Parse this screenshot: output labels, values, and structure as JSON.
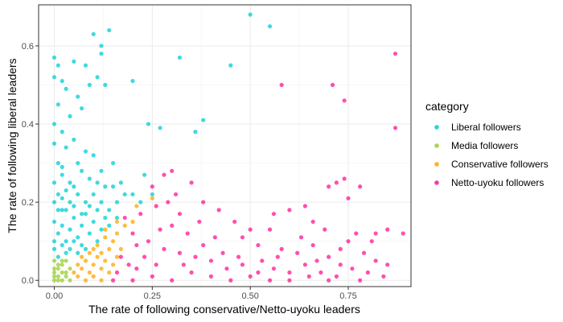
{
  "chart_data": {
    "type": "scatter",
    "title": "",
    "xlabel": "The rate of following conservative/Netto-uyoku leaders",
    "ylabel": "The rate of following liberal leaders",
    "xlim": [
      -0.04,
      0.91
    ],
    "ylim": [
      -0.016,
      0.705
    ],
    "x_ticks": [
      0.0,
      0.25,
      0.5,
      0.75
    ],
    "x_tick_labels": [
      "0.00",
      "0.25",
      "0.50",
      "0.75"
    ],
    "y_ticks": [
      0.0,
      0.2,
      0.4,
      0.6
    ],
    "y_tick_labels": [
      "0.0",
      "0.2",
      "0.4",
      "0.6"
    ],
    "grid": true,
    "legend": {
      "title": "category",
      "placement": "right",
      "entries": [
        "Liberal followers",
        "Media followers",
        "Conservative followers",
        "Netto-uyoku followers"
      ]
    },
    "series": [
      {
        "name": "Liberal followers",
        "color": "#00CED1",
        "points": [
          [
            0.0,
            0.57
          ],
          [
            0.01,
            0.55
          ],
          [
            0.0,
            0.52
          ],
          [
            0.02,
            0.51
          ],
          [
            0.05,
            0.56
          ],
          [
            0.1,
            0.63
          ],
          [
            0.12,
            0.6
          ],
          [
            0.14,
            0.64
          ],
          [
            0.12,
            0.58
          ],
          [
            0.08,
            0.55
          ],
          [
            0.11,
            0.52
          ],
          [
            0.13,
            0.5
          ],
          [
            0.2,
            0.51
          ],
          [
            0.5,
            0.68
          ],
          [
            0.55,
            0.65
          ],
          [
            0.32,
            0.57
          ],
          [
            0.45,
            0.55
          ],
          [
            0.38,
            0.41
          ],
          [
            0.36,
            0.38
          ],
          [
            0.27,
            0.39
          ],
          [
            0.24,
            0.4
          ],
          [
            0.03,
            0.49
          ],
          [
            0.06,
            0.47
          ],
          [
            0.09,
            0.5
          ],
          [
            0.07,
            0.44
          ],
          [
            0.04,
            0.42
          ],
          [
            0.01,
            0.45
          ],
          [
            0.02,
            0.38
          ],
          [
            0.05,
            0.36
          ],
          [
            0.08,
            0.33
          ],
          [
            0.0,
            0.4
          ],
          [
            0.03,
            0.34
          ],
          [
            0.06,
            0.3
          ],
          [
            0.1,
            0.32
          ],
          [
            0.12,
            0.28
          ],
          [
            0.15,
            0.3
          ],
          [
            0.17,
            0.25
          ],
          [
            0.2,
            0.22
          ],
          [
            0.23,
            0.27
          ],
          [
            0.25,
            0.22
          ],
          [
            0.22,
            0.2
          ],
          [
            0.0,
            0.35
          ],
          [
            0.01,
            0.3
          ],
          [
            0.02,
            0.27
          ],
          [
            0.04,
            0.25
          ],
          [
            0.0,
            0.25
          ],
          [
            0.01,
            0.22
          ],
          [
            0.0,
            0.2
          ],
          [
            0.02,
            0.18
          ],
          [
            0.04,
            0.2
          ],
          [
            0.06,
            0.22
          ],
          [
            0.08,
            0.2
          ],
          [
            0.1,
            0.22
          ],
          [
            0.12,
            0.2
          ],
          [
            0.14,
            0.18
          ],
          [
            0.16,
            0.2
          ],
          [
            0.18,
            0.22
          ],
          [
            0.15,
            0.24
          ],
          [
            0.09,
            0.26
          ],
          [
            0.07,
            0.28
          ],
          [
            0.11,
            0.25
          ],
          [
            0.13,
            0.24
          ],
          [
            0.0,
            0.15
          ],
          [
            0.01,
            0.12
          ],
          [
            0.02,
            0.14
          ],
          [
            0.03,
            0.1
          ],
          [
            0.04,
            0.13
          ],
          [
            0.05,
            0.16
          ],
          [
            0.06,
            0.11
          ],
          [
            0.07,
            0.14
          ],
          [
            0.08,
            0.17
          ],
          [
            0.09,
            0.12
          ],
          [
            0.1,
            0.15
          ],
          [
            0.11,
            0.18
          ],
          [
            0.12,
            0.13
          ],
          [
            0.13,
            0.16
          ],
          [
            0.03,
            0.18
          ],
          [
            0.05,
            0.19
          ],
          [
            0.07,
            0.17
          ],
          [
            0.09,
            0.19
          ],
          [
            0.0,
            0.08
          ],
          [
            0.01,
            0.06
          ],
          [
            0.02,
            0.09
          ],
          [
            0.03,
            0.07
          ],
          [
            0.04,
            0.08
          ],
          [
            0.05,
            0.1
          ],
          [
            0.06,
            0.07
          ],
          [
            0.07,
            0.09
          ],
          [
            0.02,
            0.21
          ],
          [
            0.0,
            0.1
          ],
          [
            0.01,
            0.18
          ],
          [
            0.03,
            0.23
          ],
          [
            0.05,
            0.24
          ],
          [
            0.11,
            0.1
          ],
          [
            0.08,
            0.08
          ],
          [
            0.14,
            0.14
          ],
          [
            0.16,
            0.16
          ],
          [
            0.02,
            0.29
          ]
        ]
      },
      {
        "name": "Media followers",
        "color": "#9ACD32",
        "points": [
          [
            0.0,
            0.05
          ],
          [
            0.01,
            0.03
          ],
          [
            0.0,
            0.02
          ],
          [
            0.02,
            0.04
          ],
          [
            0.01,
            0.01
          ],
          [
            0.03,
            0.02
          ],
          [
            0.02,
            0.0
          ],
          [
            0.0,
            0.0
          ],
          [
            0.04,
            0.03
          ],
          [
            0.03,
            0.05
          ],
          [
            0.01,
            0.04
          ],
          [
            0.02,
            0.02
          ],
          [
            0.0,
            0.03
          ],
          [
            0.03,
            0.01
          ],
          [
            0.04,
            0.0
          ],
          [
            0.01,
            0.0
          ],
          [
            0.02,
            0.05
          ],
          [
            0.0,
            0.01
          ]
        ]
      },
      {
        "name": "Conservative followers",
        "color": "#FFA500",
        "points": [
          [
            0.05,
            0.02
          ],
          [
            0.06,
            0.04
          ],
          [
            0.07,
            0.03
          ],
          [
            0.08,
            0.05
          ],
          [
            0.09,
            0.02
          ],
          [
            0.1,
            0.04
          ],
          [
            0.11,
            0.06
          ],
          [
            0.12,
            0.03
          ],
          [
            0.13,
            0.05
          ],
          [
            0.14,
            0.08
          ],
          [
            0.15,
            0.1
          ],
          [
            0.16,
            0.12
          ],
          [
            0.18,
            0.14
          ],
          [
            0.2,
            0.15
          ],
          [
            0.21,
            0.19
          ],
          [
            0.25,
            0.21
          ],
          [
            0.08,
            0.0
          ],
          [
            0.1,
            0.01
          ],
          [
            0.12,
            0.0
          ],
          [
            0.09,
            0.07
          ],
          [
            0.11,
            0.09
          ],
          [
            0.13,
            0.11
          ],
          [
            0.07,
            0.06
          ],
          [
            0.06,
            0.01
          ],
          [
            0.14,
            0.02
          ],
          [
            0.15,
            0.04
          ],
          [
            0.16,
            0.06
          ],
          [
            0.17,
            0.08
          ],
          [
            0.12,
            0.07
          ],
          [
            0.1,
            0.08
          ],
          [
            0.13,
            0.13
          ],
          [
            0.16,
            0.15
          ]
        ]
      },
      {
        "name": "Netto-uyoku followers",
        "color": "#FF1493",
        "points": [
          [
            0.87,
            0.58
          ],
          [
            0.58,
            0.5
          ],
          [
            0.71,
            0.5
          ],
          [
            0.74,
            0.46
          ],
          [
            0.87,
            0.39
          ],
          [
            0.85,
            0.13
          ],
          [
            0.82,
            0.12
          ],
          [
            0.89,
            0.12
          ],
          [
            0.72,
            0.25
          ],
          [
            0.74,
            0.26
          ],
          [
            0.7,
            0.24
          ],
          [
            0.75,
            0.21
          ],
          [
            0.78,
            0.24
          ],
          [
            0.6,
            0.18
          ],
          [
            0.64,
            0.19
          ],
          [
            0.56,
            0.17
          ],
          [
            0.66,
            0.15
          ],
          [
            0.69,
            0.13
          ],
          [
            0.55,
            0.13
          ],
          [
            0.48,
            0.11
          ],
          [
            0.52,
            0.09
          ],
          [
            0.58,
            0.08
          ],
          [
            0.62,
            0.07
          ],
          [
            0.66,
            0.09
          ],
          [
            0.7,
            0.06
          ],
          [
            0.75,
            0.1
          ],
          [
            0.79,
            0.07
          ],
          [
            0.82,
            0.05
          ],
          [
            0.85,
            0.04
          ],
          [
            0.8,
            0.02
          ],
          [
            0.76,
            0.03
          ],
          [
            0.72,
            0.01
          ],
          [
            0.68,
            0.02
          ],
          [
            0.64,
            0.04
          ],
          [
            0.6,
            0.02
          ],
          [
            0.56,
            0.03
          ],
          [
            0.52,
            0.02
          ],
          [
            0.48,
            0.04
          ],
          [
            0.44,
            0.03
          ],
          [
            0.4,
            0.05
          ],
          [
            0.36,
            0.06
          ],
          [
            0.32,
            0.07
          ],
          [
            0.28,
            0.08
          ],
          [
            0.24,
            0.1
          ],
          [
            0.2,
            0.12
          ],
          [
            0.18,
            0.16
          ],
          [
            0.22,
            0.17
          ],
          [
            0.26,
            0.19
          ],
          [
            0.28,
            0.27
          ],
          [
            0.3,
            0.28
          ],
          [
            0.31,
            0.22
          ],
          [
            0.35,
            0.25
          ],
          [
            0.38,
            0.2
          ],
          [
            0.42,
            0.18
          ],
          [
            0.46,
            0.15
          ],
          [
            0.5,
            0.13
          ],
          [
            0.34,
            0.12
          ],
          [
            0.3,
            0.14
          ],
          [
            0.27,
            0.13
          ],
          [
            0.23,
            0.06
          ],
          [
            0.19,
            0.04
          ],
          [
            0.16,
            0.02
          ],
          [
            0.15,
            0.0
          ],
          [
            0.2,
            0.0
          ],
          [
            0.25,
            0.01
          ],
          [
            0.3,
            0.0
          ],
          [
            0.35,
            0.02
          ],
          [
            0.4,
            0.01
          ],
          [
            0.45,
            0.0
          ],
          [
            0.5,
            0.01
          ],
          [
            0.55,
            0.0
          ],
          [
            0.6,
            0.0
          ],
          [
            0.65,
            0.01
          ],
          [
            0.7,
            0.0
          ],
          [
            0.78,
            0.0
          ],
          [
            0.21,
            0.03
          ],
          [
            0.26,
            0.04
          ],
          [
            0.33,
            0.04
          ],
          [
            0.38,
            0.09
          ],
          [
            0.43,
            0.07
          ],
          [
            0.47,
            0.06
          ],
          [
            0.53,
            0.05
          ],
          [
            0.57,
            0.06
          ],
          [
            0.63,
            0.11
          ],
          [
            0.67,
            0.05
          ],
          [
            0.73,
            0.08
          ],
          [
            0.77,
            0.12
          ],
          [
            0.41,
            0.11
          ],
          [
            0.37,
            0.15
          ],
          [
            0.32,
            0.17
          ],
          [
            0.29,
            0.2
          ],
          [
            0.25,
            0.24
          ],
          [
            0.21,
            0.09
          ],
          [
            0.17,
            0.06
          ],
          [
            0.84,
            0.01
          ],
          [
            0.73,
            0.04
          ],
          [
            0.81,
            0.1
          ]
        ]
      }
    ]
  }
}
